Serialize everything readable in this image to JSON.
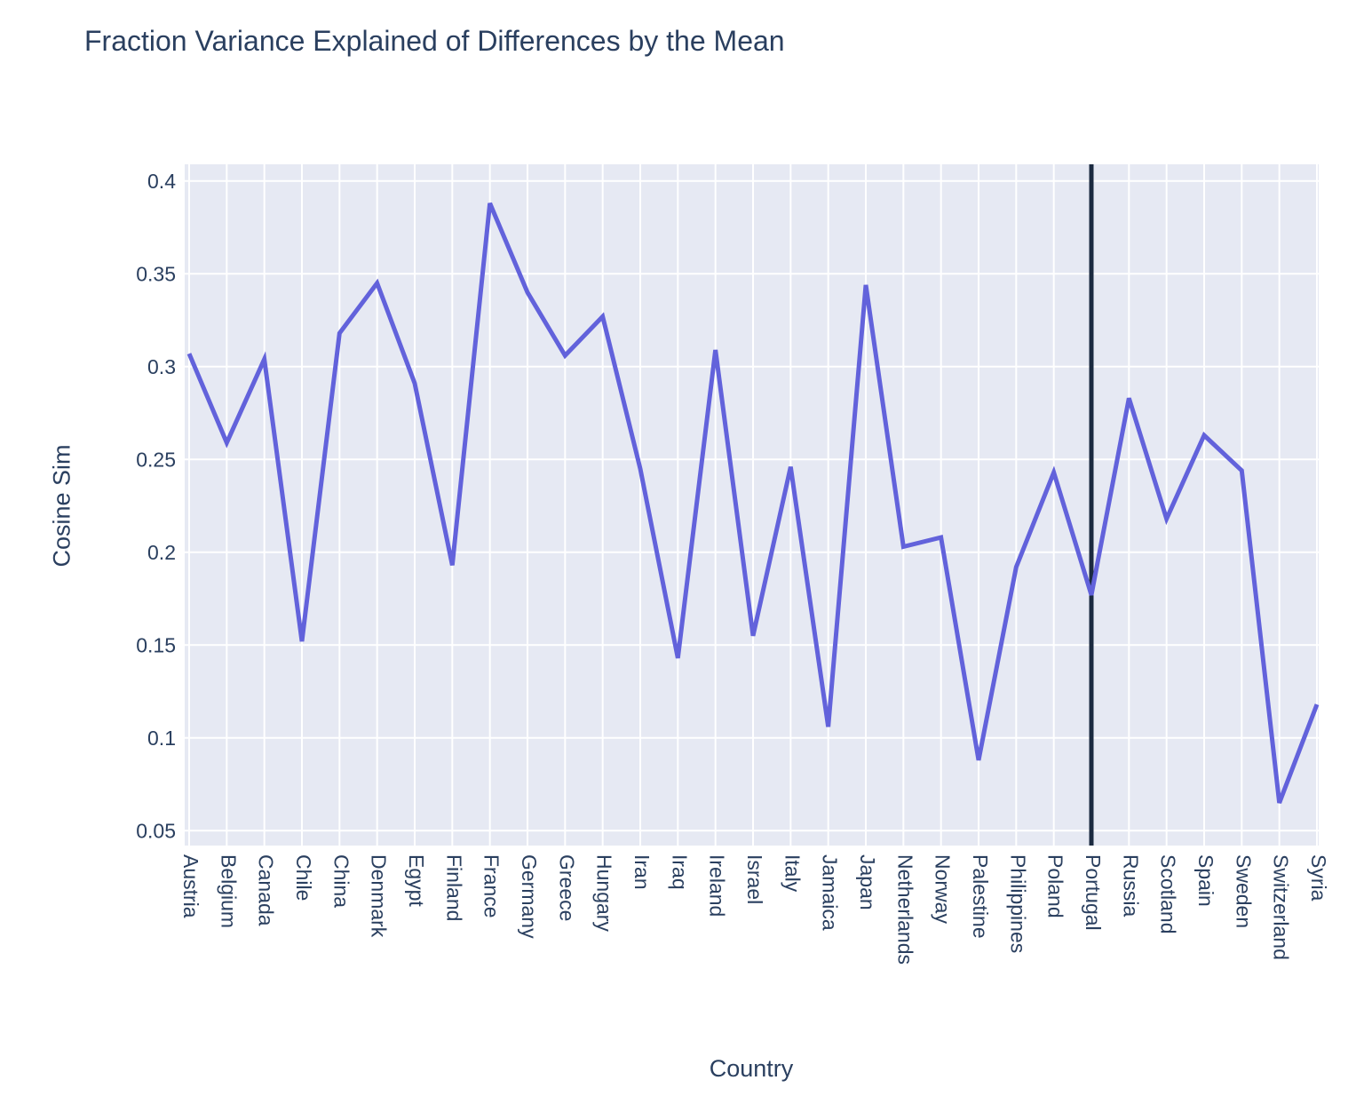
{
  "title": "Fraction Variance Explained of Differences by the Mean",
  "chart_data": {
    "type": "line",
    "title": "Fraction Variance Explained of Differences by the Mean",
    "xlabel": "Country",
    "ylabel": "Cosine Sim",
    "categories": [
      "Austria",
      "Belgium",
      "Canada",
      "Chile",
      "China",
      "Denmark",
      "Egypt",
      "Finland",
      "France",
      "Germany",
      "Greece",
      "Hungary",
      "Iran",
      "Iraq",
      "Ireland",
      "Israel",
      "Italy",
      "Jamaica",
      "Japan",
      "Netherlands",
      "Norway",
      "Palestine",
      "Philippines",
      "Poland",
      "Portugal",
      "Russia",
      "Scotland",
      "Spain",
      "Sweden",
      "Switzerland",
      "Syria"
    ],
    "values": [
      0.307,
      0.259,
      0.304,
      0.152,
      0.318,
      0.345,
      0.291,
      0.193,
      0.388,
      0.34,
      0.306,
      0.327,
      0.245,
      0.143,
      0.309,
      0.155,
      0.246,
      0.106,
      0.344,
      0.203,
      0.208,
      0.088,
      0.192,
      0.243,
      0.177,
      0.283,
      0.218,
      0.263,
      0.244,
      0.065,
      0.118
    ],
    "yticks": [
      0.4,
      0.35,
      0.3,
      0.25,
      0.2,
      0.15,
      0.1,
      0.05
    ],
    "ylim": [
      0.042,
      0.409
    ],
    "grid": true,
    "legend": "none",
    "vline": {
      "category": "Portugal",
      "color": "#1b2a40",
      "width": 5
    },
    "colors": {
      "line": "#6262db",
      "plot_bg": "#e6e9f3",
      "grid": "#ffffff",
      "text": "#2a3f5f",
      "page_bg": "#ffffff"
    }
  }
}
